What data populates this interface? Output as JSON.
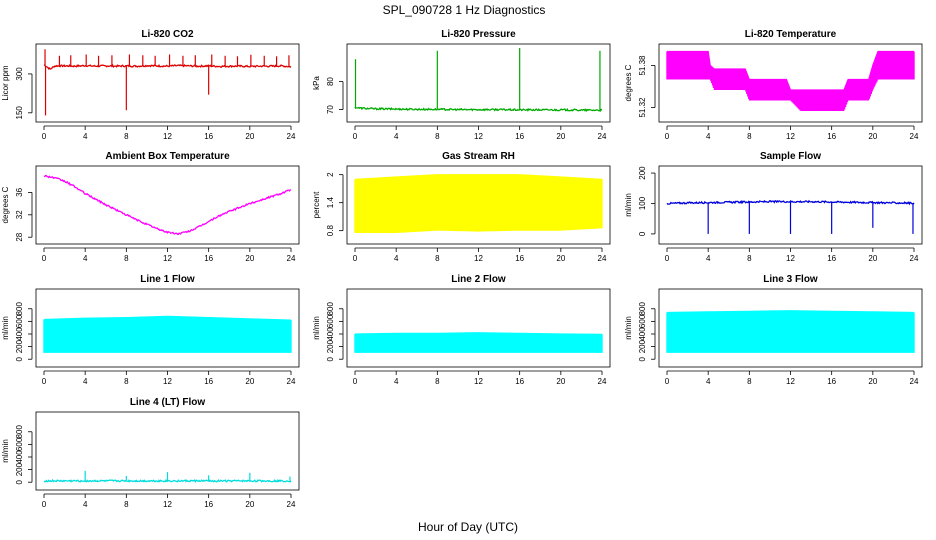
{
  "figure": {
    "title": "SPL_090728  1 Hz Diagnostics",
    "xlabel": "Hour of Day (UTC)"
  },
  "chart_data": [
    {
      "id": "co2",
      "type": "line",
      "title": "Li-820 CO2",
      "ylabel": "Licor ppm",
      "color": "#dd0000",
      "xlim": [
        0,
        24
      ],
      "ylim": [
        130,
        400
      ],
      "x_ticks": [
        0,
        4,
        8,
        12,
        16,
        20,
        24
      ],
      "y_ticks": [
        150,
        300
      ],
      "series": {
        "x": [
          0,
          0.2,
          0.6,
          1,
          1.4,
          2,
          3,
          4,
          5,
          6,
          7,
          8,
          9,
          10,
          11,
          12,
          13,
          14,
          15,
          16,
          17,
          18,
          19,
          20,
          21,
          22,
          23,
          24
        ],
        "y": [
          335,
          330,
          318,
          330,
          331,
          331,
          330,
          332,
          330,
          331,
          330,
          331,
          330,
          332,
          331,
          330,
          332,
          331,
          330,
          331,
          329,
          330,
          330,
          329,
          330,
          330,
          331,
          328
        ]
      },
      "spikes": [
        {
          "x": 0.1,
          "y": 395
        },
        {
          "x": 0.15,
          "y": 140
        },
        {
          "x": 1.5,
          "y": 370
        },
        {
          "x": 2.6,
          "y": 372
        },
        {
          "x": 4.1,
          "y": 375
        },
        {
          "x": 5.3,
          "y": 370
        },
        {
          "x": 6.6,
          "y": 372
        },
        {
          "x": 8.0,
          "y": 160
        },
        {
          "x": 8.3,
          "y": 375
        },
        {
          "x": 9.6,
          "y": 372
        },
        {
          "x": 10.8,
          "y": 370
        },
        {
          "x": 12.2,
          "y": 375
        },
        {
          "x": 13.5,
          "y": 370
        },
        {
          "x": 14.7,
          "y": 372
        },
        {
          "x": 16.0,
          "y": 220
        },
        {
          "x": 16.3,
          "y": 375
        },
        {
          "x": 17.6,
          "y": 370
        },
        {
          "x": 18.8,
          "y": 368
        },
        {
          "x": 20.1,
          "y": 374
        },
        {
          "x": 21.4,
          "y": 370
        },
        {
          "x": 22.6,
          "y": 368
        },
        {
          "x": 23.8,
          "y": 372
        }
      ]
    },
    {
      "id": "pressure",
      "type": "line",
      "title": "Li-820 Pressure",
      "ylabel": "kPa",
      "color": "#00aa00",
      "xlim": [
        0,
        24
      ],
      "ylim": [
        67,
        92
      ],
      "x_ticks": [
        0,
        4,
        8,
        12,
        16,
        20,
        24
      ],
      "y_ticks": [
        70,
        80
      ],
      "series": {
        "x": [
          0,
          0.3,
          1,
          2,
          4,
          6,
          8,
          10,
          12,
          14,
          16,
          18,
          20,
          22,
          24
        ],
        "y": [
          70.8,
          70.6,
          70.4,
          70.3,
          70.2,
          70.1,
          70.1,
          70.0,
          70.0,
          70.0,
          69.9,
          69.9,
          69.9,
          69.8,
          69.8
        ]
      },
      "spikes": [
        {
          "x": 0.05,
          "y": 88
        },
        {
          "x": 8.0,
          "y": 91
        },
        {
          "x": 16.0,
          "y": 92
        },
        {
          "x": 23.8,
          "y": 91
        }
      ]
    },
    {
      "id": "li820-temp",
      "type": "band",
      "title": "Li-820 Temperature",
      "ylabel": "degrees C",
      "color": "#ff00ff",
      "xlim": [
        0,
        24
      ],
      "ylim": [
        51.305,
        51.405
      ],
      "x_ticks": [
        0,
        4,
        8,
        12,
        16,
        20,
        24
      ],
      "y_ticks": [
        51.32,
        51.38
      ],
      "band": {
        "x": [
          0,
          4,
          4.2,
          4.6,
          5.4,
          7.6,
          8.0,
          11.6,
          12.0,
          13.0,
          17.2,
          17.6,
          19.6,
          20.0,
          20.5,
          24
        ],
        "low": [
          51.36,
          51.36,
          51.36,
          51.345,
          51.345,
          51.345,
          51.33,
          51.33,
          51.33,
          51.315,
          51.315,
          51.33,
          51.33,
          51.345,
          51.36,
          51.36
        ],
        "high": [
          51.4,
          51.4,
          51.38,
          51.375,
          51.375,
          51.375,
          51.36,
          51.36,
          51.345,
          51.345,
          51.345,
          51.36,
          51.36,
          51.38,
          51.4,
          51.4
        ]
      }
    },
    {
      "id": "ambient-temp",
      "type": "line",
      "title": "Ambient Box Temperature",
      "ylabel": "degrees C",
      "color": "#ff00ff",
      "xlim": [
        0,
        24
      ],
      "ylim": [
        27.5,
        40
      ],
      "x_ticks": [
        0,
        4,
        8,
        12,
        16,
        20,
        24
      ],
      "y_ticks": [
        28,
        32,
        36
      ],
      "series": {
        "x": [
          0,
          1,
          2,
          3,
          4,
          5,
          6,
          7,
          8,
          9,
          10,
          11,
          12,
          13,
          14,
          15,
          16,
          17,
          18,
          19,
          20,
          21,
          22,
          23,
          24
        ],
        "y": [
          39.0,
          38.6,
          38.0,
          37.0,
          35.8,
          34.8,
          33.8,
          32.9,
          32.0,
          31.1,
          30.3,
          29.5,
          28.9,
          28.6,
          29.0,
          29.8,
          30.8,
          31.8,
          32.6,
          33.3,
          34.0,
          34.6,
          35.2,
          35.8,
          36.5
        ]
      }
    },
    {
      "id": "gas-rh",
      "type": "band",
      "title": "Gas Stream RH",
      "ylabel": "percent",
      "color": "#ffff00",
      "xlim": [
        0,
        24
      ],
      "ylim": [
        0.6,
        2.1
      ],
      "x_ticks": [
        0,
        4,
        8,
        12,
        16,
        20,
        24
      ],
      "y_ticks": [
        0.8,
        1.4,
        2.0
      ],
      "band": {
        "x": [
          0,
          4,
          8,
          12,
          16,
          20,
          24
        ],
        "low": [
          0.75,
          0.75,
          0.8,
          0.78,
          0.8,
          0.8,
          0.85
        ],
        "high": [
          1.9,
          1.95,
          2.0,
          2.0,
          2.0,
          1.95,
          1.9
        ]
      }
    },
    {
      "id": "sample-flow",
      "type": "line",
      "title": "Sample Flow",
      "ylabel": "ml/min",
      "color": "#0000dd",
      "xlim": [
        0,
        24
      ],
      "ylim": [
        -20,
        210
      ],
      "x_ticks": [
        0,
        4,
        8,
        12,
        16,
        20,
        24
      ],
      "y_ticks": [
        0,
        100,
        200
      ],
      "series": {
        "x": [
          0,
          2,
          4,
          6,
          8,
          10,
          12,
          14,
          16,
          18,
          20,
          22,
          24
        ],
        "y": [
          100,
          102,
          103,
          104,
          105,
          106,
          106,
          106,
          105,
          104,
          103,
          102,
          101
        ]
      },
      "spikes": [
        {
          "x": 4.0,
          "y": 0
        },
        {
          "x": 8.0,
          "y": 0
        },
        {
          "x": 12.0,
          "y": 0
        },
        {
          "x": 16.0,
          "y": 0
        },
        {
          "x": 20.0,
          "y": 20
        },
        {
          "x": 23.9,
          "y": 0
        }
      ]
    },
    {
      "id": "line1-flow",
      "type": "band",
      "title": "Line 1 Flow",
      "ylabel": "ml/min",
      "color": "#00ffff",
      "xlim": [
        0,
        24
      ],
      "ylim": [
        -60,
        1050
      ],
      "x_ticks": [
        0,
        4,
        8,
        12,
        16,
        20,
        24
      ],
      "y_ticks": [
        0,
        200,
        400,
        600,
        800
      ],
      "band": {
        "x": [
          0,
          4,
          8,
          12,
          16,
          20,
          24
        ],
        "low": [
          100,
          100,
          100,
          100,
          100,
          100,
          100
        ],
        "high": [
          630,
          650,
          660,
          680,
          660,
          640,
          620
        ]
      }
    },
    {
      "id": "line2-flow",
      "type": "band",
      "title": "Line 2 Flow",
      "ylabel": "ml/min",
      "color": "#00ffff",
      "xlim": [
        0,
        24
      ],
      "ylim": [
        -60,
        1050
      ],
      "x_ticks": [
        0,
        4,
        8,
        12,
        16,
        20,
        24
      ],
      "y_ticks": [
        0,
        200,
        400,
        600,
        800
      ],
      "band": {
        "x": [
          0,
          4,
          8,
          12,
          16,
          20,
          24
        ],
        "low": [
          100,
          100,
          100,
          100,
          100,
          100,
          100
        ],
        "high": [
          400,
          410,
          410,
          420,
          410,
          400,
          395
        ]
      }
    },
    {
      "id": "line3-flow",
      "type": "band",
      "title": "Line 3 Flow",
      "ylabel": "ml/min",
      "color": "#00ffff",
      "xlim": [
        0,
        24
      ],
      "ylim": [
        -60,
        1050
      ],
      "x_ticks": [
        0,
        4,
        8,
        12,
        16,
        20,
        24
      ],
      "y_ticks": [
        0,
        200,
        400,
        600,
        800
      ],
      "band": {
        "x": [
          0,
          4,
          8,
          12,
          16,
          20,
          24
        ],
        "low": [
          100,
          100,
          100,
          100,
          100,
          100,
          100
        ],
        "high": [
          740,
          750,
          760,
          770,
          760,
          750,
          740
        ]
      }
    },
    {
      "id": "line4-flow",
      "type": "line",
      "title": "Line 4 (LT) Flow",
      "ylabel": "ml/min",
      "color": "#00dddd",
      "xlim": [
        0,
        24
      ],
      "ylim": [
        -60,
        1050
      ],
      "x_ticks": [
        0,
        4,
        8,
        12,
        16,
        20,
        24
      ],
      "y_ticks": [
        0,
        200,
        400,
        600,
        800
      ],
      "series": {
        "x": [
          0,
          4,
          8,
          12,
          16,
          20,
          24
        ],
        "y": [
          20,
          20,
          20,
          20,
          20,
          20,
          20
        ]
      },
      "spikes": [
        {
          "x": 4.0,
          "y": 180
        },
        {
          "x": 8.0,
          "y": 100
        },
        {
          "x": 12.0,
          "y": 160
        },
        {
          "x": 16.0,
          "y": 110
        },
        {
          "x": 20.0,
          "y": 150
        },
        {
          "x": 23.9,
          "y": 90
        }
      ]
    }
  ]
}
